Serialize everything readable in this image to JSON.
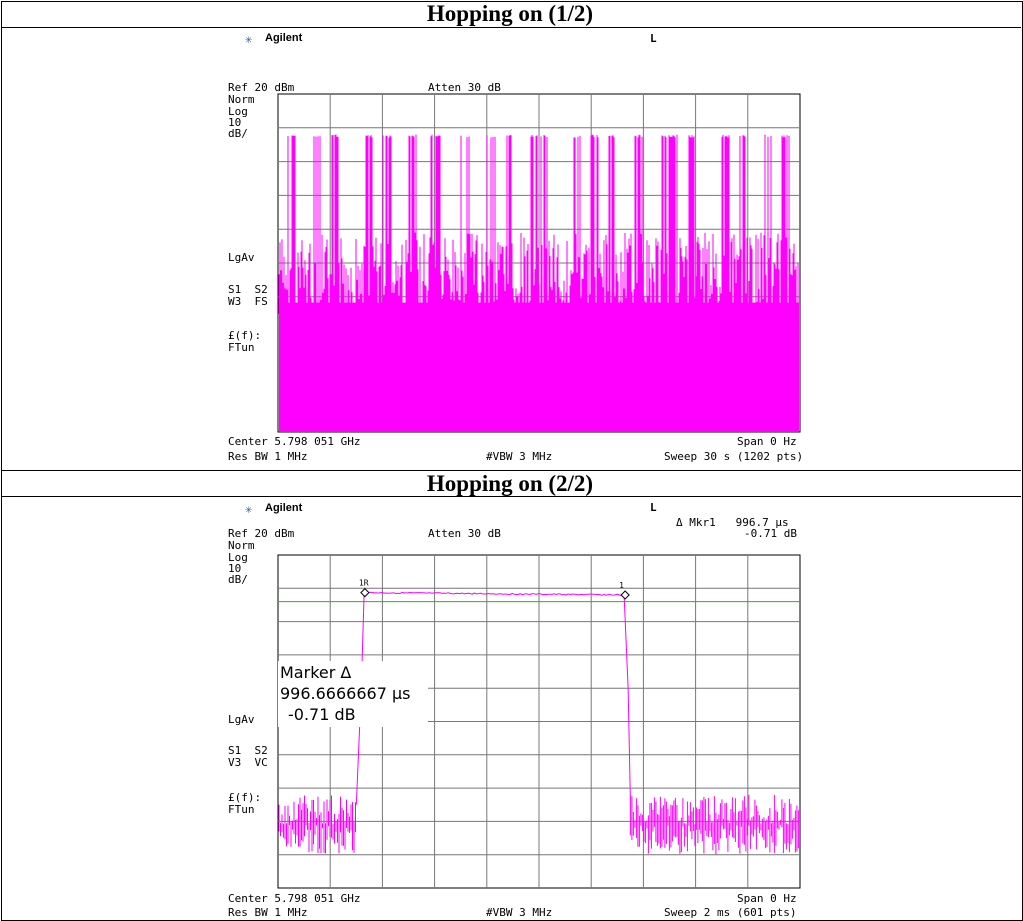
{
  "panels": [
    {
      "title": "Hopping on (1/2)",
      "brand": "Agilent",
      "status": "L",
      "ref": "Ref 20 dBm",
      "atten": "Atten 30 dB",
      "side_labels": [
        "Norm",
        "Log",
        "10",
        "dB/"
      ],
      "avg_label": "LgAv",
      "sweep_labels": [
        "S1  S2",
        "W3  FS"
      ],
      "func_labels": [
        "£(f):",
        "FTun"
      ],
      "center": "Center 5.798 051 GHz",
      "span": "Span 0 Hz",
      "rbw": "Res BW 1 MHz",
      "vbw": "#VBW 3 MHz",
      "sweep": "Sweep 30 s (1202 pts)",
      "trace_color": "#ff00ff"
    },
    {
      "title": "Hopping on (2/2)",
      "brand": "Agilent",
      "status": "L",
      "marker_readout": "Δ Mkr1   996.7 μs",
      "marker_readout_db": "-0.71 dB",
      "ref": "Ref 20 dBm",
      "atten": "Atten 30 dB",
      "side_labels": [
        "Norm",
        "Log",
        "10",
        "dB/"
      ],
      "avg_label": "LgAv",
      "sweep_labels": [
        "S1  S2",
        "V3  VC"
      ],
      "func_labels": [
        "£(f):",
        "FTun"
      ],
      "center": "Center 5.798 051 GHz",
      "span": "Span 0 Hz",
      "rbw": "Res BW 1 MHz",
      "vbw": "#VBW 3 MHz",
      "sweep": "Sweep 2 ms (601 pts)",
      "marker_title": "Marker Δ",
      "marker_value": "996.6666667 μs",
      "marker_db": "-0.71 dB",
      "marker1_label": "1R",
      "marker2_label": "1",
      "trace_color": "#ff00ff",
      "display_line_color": "#00cc00"
    }
  ],
  "chart_data": [
    {
      "type": "line",
      "title": "Hopping on (1/2)",
      "xlabel": "",
      "ylabel": "",
      "ylim": [
        -80,
        20
      ],
      "xlim": [
        0,
        30
      ],
      "x_unit": "s",
      "y_unit": "dBm",
      "grid": true,
      "legend": "none",
      "series": [
        {
          "name": "",
          "description_level": {
            "peak_dbm": 8,
            "noise_floor_dbm": -21
          },
          "y": [
            -21,
            8,
            -21,
            -21,
            8,
            -21,
            8,
            -21,
            -21,
            -21,
            8,
            -21,
            8,
            -21,
            -21,
            8,
            -21,
            8,
            8,
            -21,
            -21,
            8,
            -21,
            -21,
            8,
            -21,
            8,
            -21,
            -21,
            8,
            8,
            -21,
            -21,
            -21,
            8,
            -21,
            8,
            -21,
            8,
            -21,
            -21,
            8,
            -21,
            -21,
            8,
            8,
            -21,
            8,
            -21,
            -21,
            -21,
            8,
            -21,
            8,
            -21,
            -21,
            8,
            -21,
            8,
            -21
          ]
        }
      ]
    },
    {
      "type": "line",
      "title": "Hopping on (2/2)",
      "xlabel": "",
      "ylabel": "",
      "ylim": [
        -80,
        20
      ],
      "xlim": [
        0,
        2
      ],
      "x_unit": "ms",
      "y_unit": "dBm",
      "grid": true,
      "legend": "none",
      "display_line_dbm": 6,
      "markers": [
        {
          "label": "1R",
          "x": 0.333,
          "y": 8.7
        },
        {
          "label": "1",
          "x": 1.33,
          "y": 8.0
        }
      ],
      "series": [
        {
          "name": "",
          "x": [
            0,
            0.3,
            0.31,
            0.32,
            0.33,
            1.33,
            1.34,
            1.35,
            2.0
          ],
          "y": [
            -61,
            -61,
            -50,
            -20,
            8.7,
            8.0,
            -20,
            -61,
            -61
          ]
        }
      ]
    }
  ]
}
